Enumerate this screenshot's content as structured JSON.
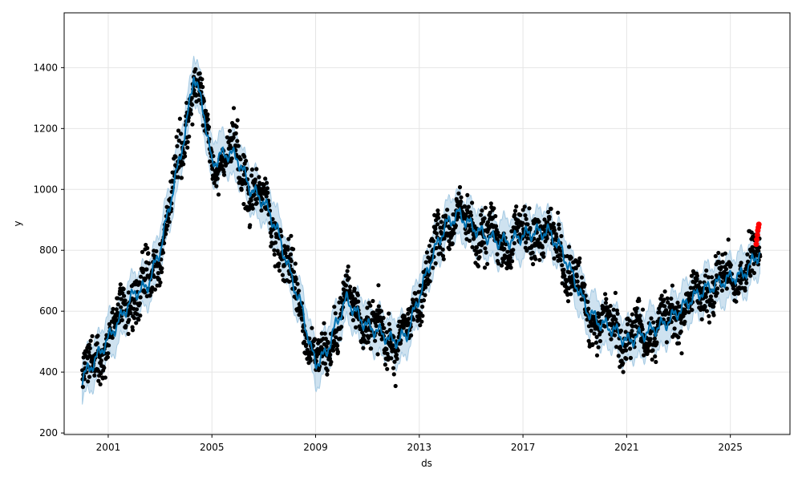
{
  "chart_data": {
    "type": "scatter",
    "xlabel": "ds",
    "ylabel": "y",
    "xlim": [
      1999.3,
      2027.3
    ],
    "ylim": [
      195,
      1580
    ],
    "grid": true,
    "x_ticks": [
      2001,
      2005,
      2009,
      2013,
      2017,
      2021,
      2025
    ],
    "y_ticks": [
      200,
      400,
      600,
      800,
      1000,
      1200,
      1400
    ],
    "colors": {
      "observed": "#000000",
      "forecast": "#0072b2",
      "interval": "#a6cbe4",
      "highlight": "#ff0000",
      "grid": "#e5e5e5"
    },
    "forecast": {
      "x": [
        2000.0,
        2000.5,
        2001.0,
        2001.5,
        2002.0,
        2002.5,
        2003.0,
        2003.5,
        2004.0,
        2004.3,
        2004.7,
        2005.0,
        2005.3,
        2005.7,
        2006.0,
        2006.5,
        2007.0,
        2007.5,
        2008.0,
        2008.5,
        2008.8,
        2009.0,
        2009.4,
        2009.8,
        2010.2,
        2010.6,
        2011.0,
        2011.5,
        2012.0,
        2012.5,
        2013.0,
        2013.5,
        2014.0,
        2014.5,
        2015.0,
        2015.5,
        2016.0,
        2016.5,
        2017.0,
        2017.5,
        2018.0,
        2018.5,
        2019.0,
        2019.5,
        2020.0,
        2020.5,
        2021.0,
        2021.5,
        2022.0,
        2022.5,
        2023.0,
        2023.5,
        2024.0,
        2024.5,
        2025.0,
        2025.5,
        2026.0,
        2026.15
      ],
      "yhat": [
        380,
        440,
        510,
        580,
        660,
        680,
        800,
        1000,
        1200,
        1380,
        1250,
        1080,
        1110,
        1120,
        1100,
        1000,
        960,
        870,
        730,
        600,
        480,
        430,
        460,
        560,
        640,
        590,
        550,
        530,
        500,
        520,
        650,
        780,
        880,
        920,
        880,
        850,
        830,
        830,
        850,
        860,
        860,
        800,
        700,
        600,
        560,
        540,
        500,
        520,
        540,
        560,
        600,
        640,
        670,
        690,
        710,
        720,
        780,
        790
      ],
      "band": 70
    },
    "highlight_points": {
      "x": [
        2026.0,
        2026.02,
        2026.04,
        2026.06,
        2026.08,
        2026.1
      ],
      "y": [
        820,
        835,
        850,
        865,
        875,
        885
      ]
    }
  }
}
